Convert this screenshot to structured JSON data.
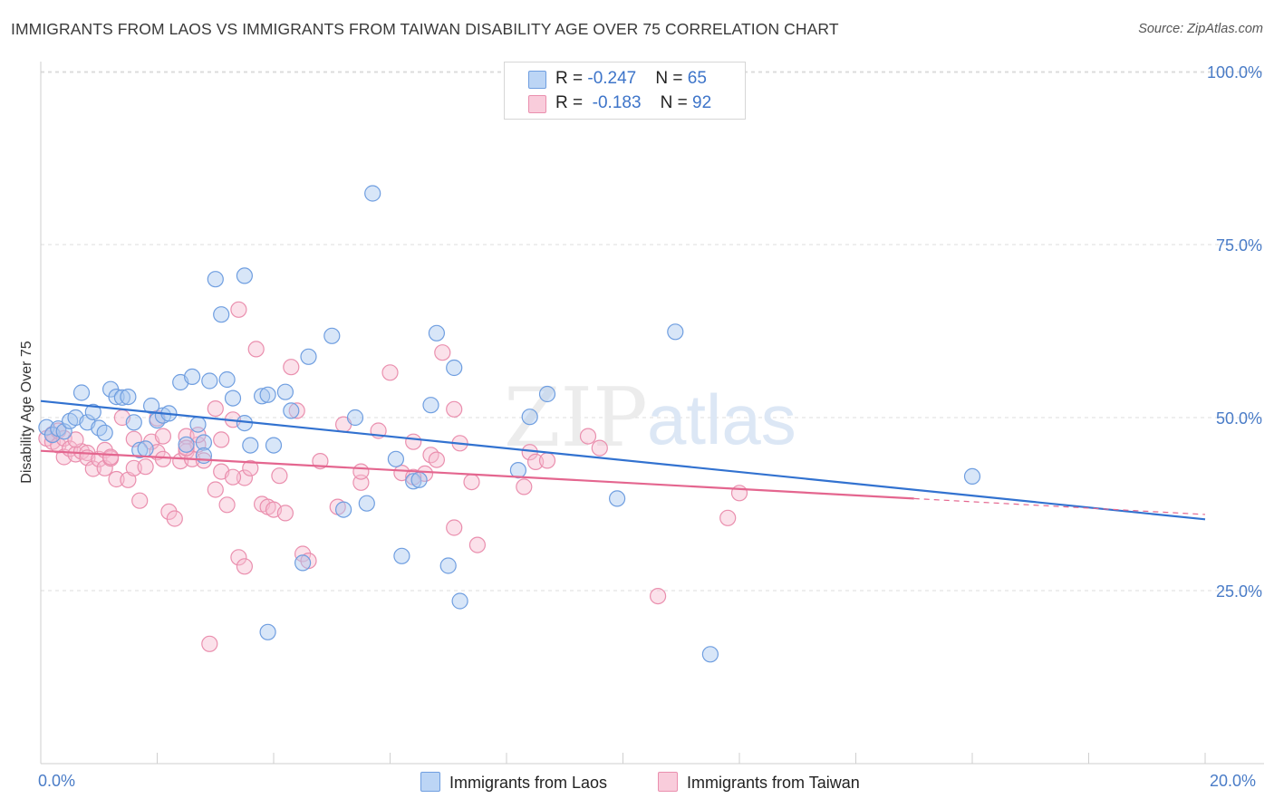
{
  "title": "IMMIGRANTS FROM LAOS VS IMMIGRANTS FROM TAIWAN DISABILITY AGE OVER 75 CORRELATION CHART",
  "source": "Source: ZipAtlas.com",
  "watermark": {
    "zip": "ZIP",
    "atlas": "atlas"
  },
  "colors": {
    "laos_fill": "#a9c8f0",
    "laos_stroke": "#6f9ee0",
    "laos_line": "#3272d0",
    "taiwan_fill": "#f6bcd0",
    "taiwan_stroke": "#ea8fae",
    "taiwan_line": "#e4668f",
    "tick_text": "#4a7cc7",
    "grid": "#dcdcdc"
  },
  "legend": {
    "laos": {
      "r_label": "R = ",
      "r_value": "-0.247",
      "n_label": "N = ",
      "n_value": "65"
    },
    "taiwan": {
      "r_label": "R = ",
      "r_value": "-0.183",
      "n_label": "N = ",
      "n_value": "92"
    }
  },
  "chart_data": {
    "type": "scatter",
    "title": "IMMIGRANTS FROM LAOS VS IMMIGRANTS FROM TAIWAN DISABILITY AGE OVER 75 CORRELATION CHART",
    "xlabel": "",
    "ylabel": "Disability Age Over 75",
    "xlim": [
      0,
      20
    ],
    "ylim": [
      0,
      105
    ],
    "x_tick_labels": [
      "0.0%",
      "20.0%"
    ],
    "y_ticks": [
      25,
      50,
      75,
      100
    ],
    "y_tick_labels": [
      "25.0%",
      "50.0%",
      "75.0%",
      "100.0%"
    ],
    "grid": true,
    "legend_position": "bottom",
    "series": [
      {
        "name": "Immigrants from Laos",
        "r": -0.247,
        "n": 65,
        "trend": {
          "x": [
            0,
            20
          ],
          "y": [
            52.4,
            35.3
          ]
        },
        "points": [
          [
            0.1,
            48.6
          ],
          [
            0.2,
            47.5
          ],
          [
            0.3,
            48.4
          ],
          [
            0.4,
            48.0
          ],
          [
            0.5,
            49.5
          ],
          [
            0.6,
            50.0
          ],
          [
            0.7,
            53.6
          ],
          [
            0.8,
            49.3
          ],
          [
            0.9,
            50.8
          ],
          [
            1.0,
            48.5
          ],
          [
            1.1,
            47.8
          ],
          [
            1.2,
            54.1
          ],
          [
            1.3,
            53.0
          ],
          [
            1.4,
            52.9
          ],
          [
            1.5,
            53.0
          ],
          [
            1.6,
            49.3
          ],
          [
            1.7,
            45.3
          ],
          [
            1.8,
            45.5
          ],
          [
            1.9,
            51.7
          ],
          [
            2.0,
            49.6
          ],
          [
            2.1,
            50.3
          ],
          [
            2.2,
            50.6
          ],
          [
            2.4,
            55.1
          ],
          [
            2.5,
            46.1
          ],
          [
            2.6,
            55.9
          ],
          [
            2.7,
            49.0
          ],
          [
            2.8,
            46.4
          ],
          [
            2.9,
            55.3
          ],
          [
            3.0,
            70.0
          ],
          [
            3.1,
            64.9
          ],
          [
            3.2,
            55.5
          ],
          [
            3.3,
            52.8
          ],
          [
            3.5,
            70.5
          ],
          [
            3.5,
            49.2
          ],
          [
            3.6,
            46.0
          ],
          [
            3.8,
            53.1
          ],
          [
            3.9,
            53.3
          ],
          [
            4.0,
            46.0
          ],
          [
            4.2,
            53.7
          ],
          [
            4.3,
            51.0
          ],
          [
            4.5,
            29.0
          ],
          [
            4.6,
            58.8
          ],
          [
            5.0,
            61.8
          ],
          [
            5.2,
            36.7
          ],
          [
            5.4,
            50.0
          ],
          [
            5.6,
            37.6
          ],
          [
            5.7,
            82.4
          ],
          [
            6.1,
            44.0
          ],
          [
            6.2,
            30.0
          ],
          [
            6.4,
            40.8
          ],
          [
            6.5,
            41.0
          ],
          [
            6.7,
            51.8
          ],
          [
            6.8,
            62.2
          ],
          [
            7.0,
            28.6
          ],
          [
            7.1,
            57.2
          ],
          [
            7.2,
            23.5
          ],
          [
            8.2,
            42.4
          ],
          [
            8.4,
            50.1
          ],
          [
            8.7,
            53.4
          ],
          [
            9.9,
            38.3
          ],
          [
            10.9,
            62.4
          ],
          [
            11.5,
            15.8
          ],
          [
            16.0,
            41.5
          ],
          [
            3.9,
            19.0
          ],
          [
            2.8,
            44.5
          ]
        ]
      },
      {
        "name": "Immigrants from Taiwan",
        "r": -0.183,
        "n": 92,
        "trend": {
          "x": [
            0,
            15.0
          ],
          "y": [
            45.2,
            38.3
          ]
        },
        "trend_dashed": {
          "x": [
            15.0,
            20
          ],
          "y": [
            38.3,
            36.0
          ]
        },
        "points": [
          [
            0.1,
            47.0
          ],
          [
            0.2,
            46.5
          ],
          [
            0.2,
            47.6
          ],
          [
            0.3,
            46.0
          ],
          [
            0.3,
            48.1
          ],
          [
            0.4,
            47.0
          ],
          [
            0.4,
            44.3
          ],
          [
            0.5,
            45.5
          ],
          [
            0.6,
            44.7
          ],
          [
            0.7,
            45.1
          ],
          [
            0.8,
            44.9
          ],
          [
            0.8,
            44.2
          ],
          [
            0.9,
            42.6
          ],
          [
            1.0,
            44.0
          ],
          [
            1.1,
            45.3
          ],
          [
            1.1,
            42.7
          ],
          [
            1.2,
            44.1
          ],
          [
            1.3,
            41.1
          ],
          [
            1.4,
            50.0
          ],
          [
            1.5,
            41.0
          ],
          [
            1.6,
            46.9
          ],
          [
            1.6,
            42.7
          ],
          [
            1.7,
            38.0
          ],
          [
            1.8,
            42.9
          ],
          [
            1.9,
            46.5
          ],
          [
            2.0,
            49.9
          ],
          [
            2.0,
            45.0
          ],
          [
            2.1,
            44.0
          ],
          [
            2.1,
            47.3
          ],
          [
            2.2,
            36.4
          ],
          [
            2.3,
            35.4
          ],
          [
            2.4,
            43.7
          ],
          [
            2.5,
            45.1
          ],
          [
            2.5,
            47.3
          ],
          [
            2.6,
            44.0
          ],
          [
            2.7,
            46.1
          ],
          [
            2.8,
            43.8
          ],
          [
            2.9,
            17.3
          ],
          [
            3.0,
            39.6
          ],
          [
            3.0,
            51.3
          ],
          [
            3.1,
            42.2
          ],
          [
            3.1,
            46.8
          ],
          [
            3.2,
            37.4
          ],
          [
            3.3,
            49.7
          ],
          [
            3.4,
            65.6
          ],
          [
            3.4,
            29.8
          ],
          [
            3.5,
            41.3
          ],
          [
            3.5,
            28.5
          ],
          [
            3.6,
            42.7
          ],
          [
            3.7,
            59.9
          ],
          [
            3.8,
            37.5
          ],
          [
            3.9,
            37.1
          ],
          [
            4.0,
            36.7
          ],
          [
            4.1,
            41.6
          ],
          [
            4.2,
            36.2
          ],
          [
            4.3,
            57.3
          ],
          [
            4.4,
            51.0
          ],
          [
            4.5,
            30.3
          ],
          [
            4.6,
            29.3
          ],
          [
            4.8,
            43.7
          ],
          [
            5.1,
            37.1
          ],
          [
            5.2,
            49.0
          ],
          [
            5.5,
            40.6
          ],
          [
            5.5,
            42.2
          ],
          [
            5.8,
            48.1
          ],
          [
            6.0,
            56.5
          ],
          [
            6.2,
            42.0
          ],
          [
            6.4,
            46.5
          ],
          [
            6.6,
            41.9
          ],
          [
            6.7,
            44.6
          ],
          [
            6.8,
            43.9
          ],
          [
            6.9,
            59.4
          ],
          [
            7.1,
            34.1
          ],
          [
            7.1,
            51.2
          ],
          [
            7.2,
            46.3
          ],
          [
            7.4,
            40.7
          ],
          [
            7.5,
            31.6
          ],
          [
            8.3,
            40.0
          ],
          [
            8.4,
            45.0
          ],
          [
            8.5,
            43.6
          ],
          [
            8.7,
            43.8
          ],
          [
            9.4,
            47.3
          ],
          [
            9.6,
            45.6
          ],
          [
            10.6,
            24.2
          ],
          [
            11.8,
            35.5
          ],
          [
            12.0,
            39.1
          ],
          [
            6.4,
            41.4
          ],
          [
            2.5,
            45.6
          ],
          [
            1.2,
            44.3
          ],
          [
            0.6,
            46.8
          ],
          [
            3.3,
            41.4
          ],
          [
            2.7,
            47.5
          ]
        ]
      }
    ],
    "watermark": "ZIPatlas"
  },
  "bottom_legend": {
    "laos_label": "Immigrants from Laos",
    "taiwan_label": "Immigrants from Taiwan"
  }
}
